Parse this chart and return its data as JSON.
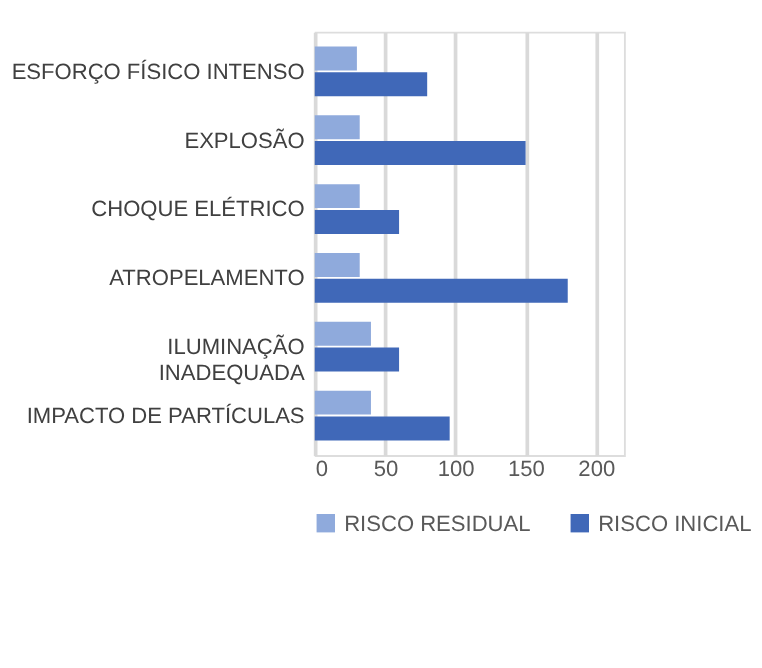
{
  "chart_data": {
    "type": "bar",
    "orientation": "horizontal",
    "categories": [
      "ESFORÇO FÍSICO INTENSO",
      "EXPLOSÃO",
      "CHOQUE ELÉTRICO",
      "ATROPELAMENTO",
      "ILUMINAÇÃO\nINADEQUADA",
      "IMPACTO DE PARTÍCULAS"
    ],
    "series": [
      {
        "name": "RISCO RESIDUAL",
        "color": "#8faadc",
        "values": [
          30,
          32,
          32,
          32,
          40,
          40
        ]
      },
      {
        "name": "RISCO INICIAL",
        "color": "#4068b8",
        "values": [
          80,
          150,
          60,
          180,
          60,
          96
        ]
      }
    ],
    "xlim": [
      0,
      220
    ],
    "xticks": [
      0,
      50,
      100,
      150,
      200
    ],
    "grid": "x",
    "legend": "bottom"
  }
}
